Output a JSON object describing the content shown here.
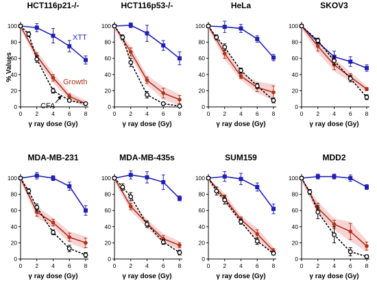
{
  "figure": {
    "ylabel": "% Values",
    "xlabel": "γ ray dose (Gy)",
    "annotations": {
      "xtt": "XTT",
      "growth": "Growth",
      "cfa": "CFA"
    },
    "colors": {
      "xtt": "#1f1fb4",
      "growth": "#b0301a",
      "cfa": "#000000",
      "band": "#f4c6c6"
    }
  },
  "chart_data": [
    {
      "type": "line",
      "title": "HCT116p21-/-",
      "x": [
        0,
        2,
        4,
        6,
        8
      ],
      "xlim": [
        0,
        8
      ],
      "ylim": [
        0,
        100
      ],
      "xticks": [
        0,
        2,
        4,
        6,
        8
      ],
      "yticks": [
        0,
        20,
        40,
        60,
        80,
        100
      ],
      "series": [
        {
          "name": "XTT",
          "values": [
            100,
            98,
            88,
            75,
            58
          ],
          "err": [
            0,
            5,
            9,
            7,
            5
          ]
        },
        {
          "name": "Growth",
          "values": [
            100,
            63,
            36,
            13,
            4
          ],
          "err": [
            0,
            4,
            4,
            3,
            2
          ]
        },
        {
          "name": "CFA",
          "x": [
            0,
            1,
            2,
            4,
            6,
            8
          ],
          "values": [
            100,
            90,
            59,
            20,
            8,
            4
          ],
          "err": [
            0,
            3,
            4,
            3,
            2,
            1
          ]
        }
      ]
    },
    {
      "type": "line",
      "title": "HCT116p53-/-",
      "x": [
        0,
        2,
        4,
        6,
        8
      ],
      "xlim": [
        0,
        8
      ],
      "ylim": [
        0,
        100
      ],
      "xticks": [
        0,
        2,
        4,
        6,
        8
      ],
      "yticks": [
        0,
        20,
        40,
        60,
        80,
        100
      ],
      "series": [
        {
          "name": "XTT",
          "values": [
            100,
            101,
            91,
            76,
            60
          ],
          "err": [
            0,
            3,
            10,
            6,
            8
          ]
        },
        {
          "name": "Growth",
          "values": [
            100,
            68,
            33,
            17,
            9
          ],
          "err": [
            0,
            5,
            4,
            6,
            5
          ]
        },
        {
          "name": "CFA",
          "x": [
            0,
            1,
            2,
            4,
            6,
            8
          ],
          "values": [
            100,
            86,
            55,
            15,
            4,
            1
          ],
          "err": [
            0,
            3,
            5,
            4,
            2,
            1
          ]
        }
      ]
    },
    {
      "type": "line",
      "title": "HeLa",
      "x": [
        0,
        2,
        4,
        6,
        8
      ],
      "xlim": [
        0,
        8
      ],
      "ylim": [
        0,
        100
      ],
      "xticks": [
        0,
        2,
        4,
        6,
        8
      ],
      "yticks": [
        0,
        20,
        40,
        60,
        80,
        100
      ],
      "series": [
        {
          "name": "XTT",
          "values": [
            100,
            99,
            97,
            84,
            61
          ],
          "err": [
            0,
            7,
            5,
            4,
            4
          ]
        },
        {
          "name": "Growth",
          "values": [
            100,
            66,
            38,
            24,
            18
          ],
          "err": [
            0,
            6,
            3,
            5,
            8
          ]
        },
        {
          "name": "CFA",
          "x": [
            0,
            1,
            2,
            4,
            6,
            8
          ],
          "values": [
            100,
            86,
            74,
            45,
            26,
            8
          ],
          "err": [
            0,
            3,
            4,
            3,
            3,
            3
          ]
        }
      ]
    },
    {
      "type": "line",
      "title": "SKOV3",
      "x": [
        0,
        2,
        4,
        6,
        8
      ],
      "xlim": [
        0,
        8
      ],
      "ylim": [
        0,
        100
      ],
      "xticks": [
        0,
        2,
        4,
        6,
        8
      ],
      "yticks": [
        0,
        20,
        40,
        60,
        80,
        100
      ],
      "series": [
        {
          "name": "XTT",
          "values": [
            100,
            80,
            62,
            56,
            48
          ],
          "err": [
            0,
            4,
            7,
            6,
            4
          ]
        },
        {
          "name": "Growth",
          "values": [
            100,
            75,
            52,
            37,
            22
          ],
          "err": [
            0,
            6,
            6,
            4,
            2
          ]
        },
        {
          "name": "CFA",
          "x": [
            0,
            2,
            4,
            6,
            8
          ],
          "values": [
            100,
            82,
            57,
            35,
            12
          ],
          "err": [
            0,
            3,
            5,
            4,
            3
          ]
        }
      ]
    },
    {
      "type": "line",
      "title": "MDA-MB-231",
      "x": [
        0,
        2,
        4,
        6,
        8
      ],
      "xlim": [
        0,
        8
      ],
      "ylim": [
        0,
        100
      ],
      "xticks": [
        0,
        2,
        4,
        6,
        8
      ],
      "yticks": [
        0,
        20,
        40,
        60,
        80,
        100
      ],
      "series": [
        {
          "name": "XTT",
          "values": [
            100,
            103,
            100,
            90,
            60
          ],
          "err": [
            0,
            4,
            3,
            5,
            6
          ]
        },
        {
          "name": "Growth",
          "values": [
            100,
            58,
            45,
            27,
            20
          ],
          "err": [
            0,
            5,
            4,
            5,
            6
          ]
        },
        {
          "name": "CFA",
          "x": [
            0,
            1,
            2,
            4,
            6,
            8
          ],
          "values": [
            100,
            84,
            64,
            33,
            13,
            5
          ],
          "err": [
            0,
            3,
            4,
            3,
            4,
            3
          ]
        }
      ]
    },
    {
      "type": "line",
      "title": "MDA-MB-435s",
      "x": [
        0,
        2,
        4,
        6,
        8
      ],
      "xlim": [
        0,
        8
      ],
      "ylim": [
        0,
        100
      ],
      "xticks": [
        0,
        2,
        4,
        6,
        8
      ],
      "yticks": [
        0,
        20,
        40,
        60,
        80,
        100
      ],
      "series": [
        {
          "name": "XTT",
          "values": [
            100,
            104,
            101,
            95,
            75
          ],
          "err": [
            0,
            5,
            7,
            9,
            3
          ]
        },
        {
          "name": "Growth",
          "values": [
            100,
            65,
            44,
            25,
            17
          ],
          "err": [
            0,
            4,
            3,
            4,
            3
          ]
        },
        {
          "name": "CFA",
          "x": [
            0,
            1,
            2,
            4,
            6,
            8
          ],
          "values": [
            100,
            89,
            77,
            43,
            21,
            8
          ],
          "err": [
            0,
            4,
            5,
            4,
            3,
            3
          ]
        }
      ]
    },
    {
      "type": "line",
      "title": "SUM159",
      "x": [
        0,
        2,
        4,
        6,
        8
      ],
      "xlim": [
        0,
        8
      ],
      "ylim": [
        0,
        100
      ],
      "xticks": [
        0,
        2,
        4,
        6,
        8
      ],
      "yticks": [
        0,
        20,
        40,
        60,
        80,
        100
      ],
      "series": [
        {
          "name": "XTT",
          "values": [
            100,
            102,
            99,
            89,
            62
          ],
          "err": [
            0,
            6,
            7,
            5,
            6
          ]
        },
        {
          "name": "Growth",
          "values": [
            100,
            75,
            49,
            31,
            10
          ],
          "err": [
            0,
            4,
            3,
            5,
            3
          ]
        },
        {
          "name": "CFA",
          "x": [
            0,
            1,
            2,
            4,
            6,
            8
          ],
          "values": [
            100,
            84,
            73,
            46,
            22,
            7
          ],
          "err": [
            0,
            5,
            5,
            3,
            4,
            2
          ]
        }
      ]
    },
    {
      "type": "line",
      "title": "MDD2",
      "x": [
        0,
        2,
        4,
        6,
        8
      ],
      "xlim": [
        0,
        8
      ],
      "ylim": [
        0,
        100
      ],
      "xticks": [
        0,
        2,
        4,
        6,
        8
      ],
      "yticks": [
        0,
        20,
        40,
        60,
        80,
        100
      ],
      "series": [
        {
          "name": "XTT",
          "values": [
            100,
            102,
            102,
            100,
            89
          ],
          "err": [
            0,
            3,
            3,
            4,
            3
          ]
        },
        {
          "name": "Growth",
          "values": [
            100,
            63,
            43,
            34,
            16
          ],
          "err": [
            0,
            6,
            5,
            10,
            5
          ]
        },
        {
          "name": "CFA",
          "x": [
            0,
            1,
            2,
            4,
            6,
            8
          ],
          "values": [
            100,
            83,
            58,
            30,
            9,
            3
          ],
          "err": [
            0,
            3,
            8,
            10,
            5,
            2
          ]
        }
      ]
    }
  ]
}
